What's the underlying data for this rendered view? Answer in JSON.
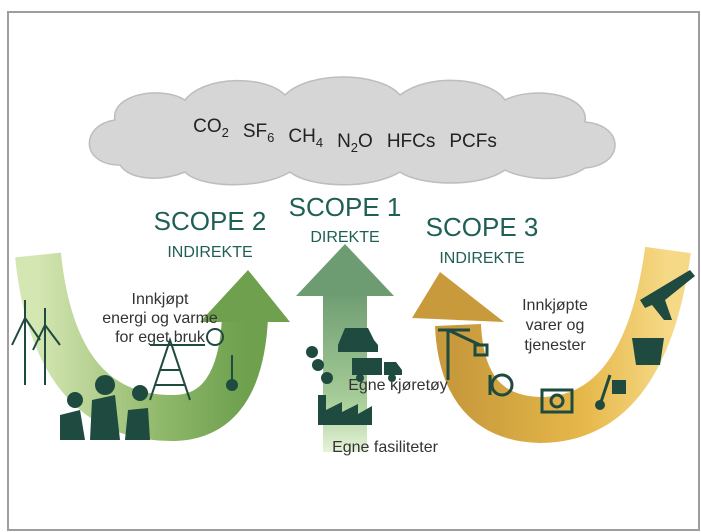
{
  "gases": [
    [
      {
        "text": "CO"
      },
      {
        "text": "2",
        "sub": true
      }
    ],
    [
      {
        "text": "SF"
      },
      {
        "text": "6",
        "sub": true
      }
    ],
    [
      {
        "text": "CH"
      },
      {
        "text": "4",
        "sub": true
      }
    ],
    [
      {
        "text": "N"
      },
      {
        "text": "2",
        "sub": true
      },
      {
        "text": "O"
      }
    ],
    [
      {
        "text": "HFCs"
      }
    ],
    [
      {
        "text": "PCFs"
      }
    ]
  ],
  "scope2": {
    "title": "SCOPE 2",
    "subtitle": "INDIREKTE",
    "label": [
      "Innkjøpt",
      "energi og varme",
      "for eget bruk"
    ]
  },
  "scope1": {
    "title": "SCOPE 1",
    "subtitle": "DIREKTE",
    "labels": [
      "Egne kjøretøy",
      "Egne fasiliteter"
    ]
  },
  "scope3": {
    "title": "SCOPE 3",
    "subtitle": "INDIREKTE",
    "label": [
      "Innkjøpte",
      "varer og",
      "tjenester"
    ]
  }
}
